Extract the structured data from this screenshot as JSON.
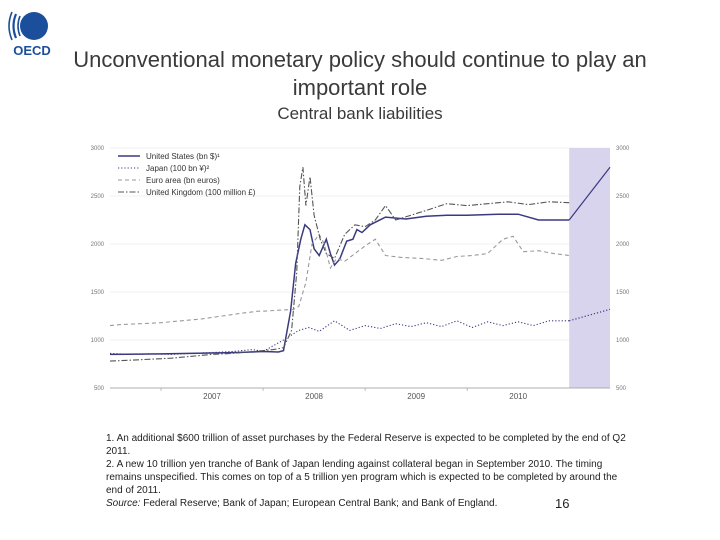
{
  "logo": {
    "text": "OECD",
    "icon": "oecd-logo"
  },
  "title": "Unconventional monetary policy should continue to play an important role",
  "subtitle": "Central bank liabilities",
  "chart_data": {
    "type": "line",
    "left_axis_ticks": [
      "3000",
      "2500",
      "2000",
      "1500",
      "1000",
      "500"
    ],
    "right_axis_ticks": [
      "3000",
      "2500",
      "2000",
      "1500",
      "1000",
      "500"
    ],
    "ylim": [
      500,
      3000
    ],
    "x_ticks": [
      "2007",
      "2008",
      "2009",
      "2010"
    ],
    "xlim": [
      2006.5,
      2011.4
    ],
    "forecast_start": 2011.0,
    "forecast_shade_color": "#d9d4ee",
    "series": [
      {
        "name": "United States (bn $)¹",
        "color": "#3a3a80",
        "style": "solid",
        "points": [
          [
            2006.5,
            850
          ],
          [
            2007.0,
            855
          ],
          [
            2007.5,
            865
          ],
          [
            2007.75,
            870
          ],
          [
            2008.0,
            880
          ],
          [
            2008.15,
            875
          ],
          [
            2008.2,
            890
          ],
          [
            2008.27,
            1300
          ],
          [
            2008.32,
            1800
          ],
          [
            2008.37,
            2050
          ],
          [
            2008.41,
            2200
          ],
          [
            2008.46,
            2150
          ],
          [
            2008.5,
            1950
          ],
          [
            2008.55,
            1880
          ],
          [
            2008.62,
            2050
          ],
          [
            2008.66,
            1900
          ],
          [
            2008.7,
            1780
          ],
          [
            2008.75,
            1840
          ],
          [
            2008.82,
            2030
          ],
          [
            2008.88,
            2050
          ],
          [
            2008.92,
            2150
          ],
          [
            2008.97,
            2120
          ],
          [
            2009.05,
            2200
          ],
          [
            2009.2,
            2280
          ],
          [
            2009.4,
            2260
          ],
          [
            2009.6,
            2290
          ],
          [
            2009.8,
            2300
          ],
          [
            2010.0,
            2300
          ],
          [
            2010.3,
            2310
          ],
          [
            2010.5,
            2310
          ],
          [
            2010.7,
            2250
          ],
          [
            2011.0,
            2250
          ],
          [
            2011.4,
            2800
          ]
        ]
      },
      {
        "name": "Japan (100 bn ¥)²",
        "color": "#3a3a80",
        "style": "dotted",
        "points": [
          [
            2006.5,
            860
          ],
          [
            2006.7,
            850
          ],
          [
            2006.9,
            855
          ],
          [
            2007.1,
            850
          ],
          [
            2007.3,
            860
          ],
          [
            2007.5,
            870
          ],
          [
            2007.7,
            880
          ],
          [
            2007.9,
            900
          ],
          [
            2008.0,
            880
          ],
          [
            2008.2,
            1000
          ],
          [
            2008.35,
            1100
          ],
          [
            2008.45,
            1130
          ],
          [
            2008.55,
            1090
          ],
          [
            2008.7,
            1200
          ],
          [
            2008.85,
            1100
          ],
          [
            2009.0,
            1150
          ],
          [
            2009.15,
            1120
          ],
          [
            2009.3,
            1170
          ],
          [
            2009.45,
            1140
          ],
          [
            2009.6,
            1180
          ],
          [
            2009.75,
            1140
          ],
          [
            2009.9,
            1200
          ],
          [
            2010.05,
            1130
          ],
          [
            2010.2,
            1190
          ],
          [
            2010.35,
            1150
          ],
          [
            2010.5,
            1190
          ],
          [
            2010.65,
            1150
          ],
          [
            2010.8,
            1200
          ],
          [
            2011.0,
            1200
          ],
          [
            2011.4,
            1320
          ]
        ]
      },
      {
        "name": "Euro area (bn euros)",
        "color": "#9a9a9a",
        "style": "dashed",
        "points": [
          [
            2006.5,
            1150
          ],
          [
            2006.6,
            1160
          ],
          [
            2006.8,
            1170
          ],
          [
            2007.0,
            1180
          ],
          [
            2007.2,
            1200
          ],
          [
            2007.4,
            1220
          ],
          [
            2007.6,
            1250
          ],
          [
            2007.8,
            1280
          ],
          [
            2007.95,
            1300
          ],
          [
            2008.0,
            1300
          ],
          [
            2008.3,
            1320
          ],
          [
            2008.35,
            1350
          ],
          [
            2008.42,
            1600
          ],
          [
            2008.48,
            2000
          ],
          [
            2008.55,
            2100
          ],
          [
            2008.6,
            2000
          ],
          [
            2008.66,
            1750
          ],
          [
            2008.72,
            1850
          ],
          [
            2008.8,
            1820
          ],
          [
            2008.9,
            1900
          ],
          [
            2009.0,
            1980
          ],
          [
            2009.1,
            2050
          ],
          [
            2009.2,
            1880
          ],
          [
            2009.35,
            1860
          ],
          [
            2009.55,
            1850
          ],
          [
            2009.75,
            1830
          ],
          [
            2009.9,
            1870
          ],
          [
            2010.05,
            1880
          ],
          [
            2010.2,
            1900
          ],
          [
            2010.35,
            2050
          ],
          [
            2010.45,
            2080
          ],
          [
            2010.55,
            1920
          ],
          [
            2010.7,
            1930
          ],
          [
            2010.85,
            1900
          ],
          [
            2011.0,
            1880
          ]
        ]
      },
      {
        "name": "United Kingdom (100 million £)",
        "color": "#555555",
        "style": "dashdot",
        "points": [
          [
            2006.5,
            780
          ],
          [
            2006.7,
            790
          ],
          [
            2006.9,
            800
          ],
          [
            2007.1,
            810
          ],
          [
            2007.3,
            830
          ],
          [
            2007.5,
            850
          ],
          [
            2007.7,
            860
          ],
          [
            2007.9,
            880
          ],
          [
            2008.1,
            900
          ],
          [
            2008.2,
            920
          ],
          [
            2008.28,
            1100
          ],
          [
            2008.33,
            1700
          ],
          [
            2008.36,
            2600
          ],
          [
            2008.39,
            2800
          ],
          [
            2008.42,
            2400
          ],
          [
            2008.46,
            2700
          ],
          [
            2008.5,
            2300
          ],
          [
            2008.56,
            2050
          ],
          [
            2008.62,
            1900
          ],
          [
            2008.7,
            1850
          ],
          [
            2008.8,
            2100
          ],
          [
            2008.9,
            2200
          ],
          [
            2009.0,
            2180
          ],
          [
            2009.1,
            2250
          ],
          [
            2009.2,
            2400
          ],
          [
            2009.3,
            2250
          ],
          [
            2009.45,
            2300
          ],
          [
            2009.6,
            2350
          ],
          [
            2009.8,
            2420
          ],
          [
            2010.0,
            2400
          ],
          [
            2010.2,
            2420
          ],
          [
            2010.4,
            2440
          ],
          [
            2010.6,
            2410
          ],
          [
            2010.8,
            2440
          ],
          [
            2011.0,
            2430
          ]
        ]
      }
    ]
  },
  "notes": {
    "note1": "1. An additional $600 trillion of asset purchases by the Federal Reserve is expected to be completed by the end of Q2 2011.",
    "note2": "2. A new 10 trillion yen tranche of Bank of Japan lending against collateral began in September 2010. The timing remains unspecified. This comes on top of a 5 trillion yen program which is expected to be completed by around the end of 2011.",
    "source_label": "Source:",
    "source_text": " Federal Reserve; Bank of Japan; European Central Bank; and Bank of England."
  },
  "page_number": "16"
}
